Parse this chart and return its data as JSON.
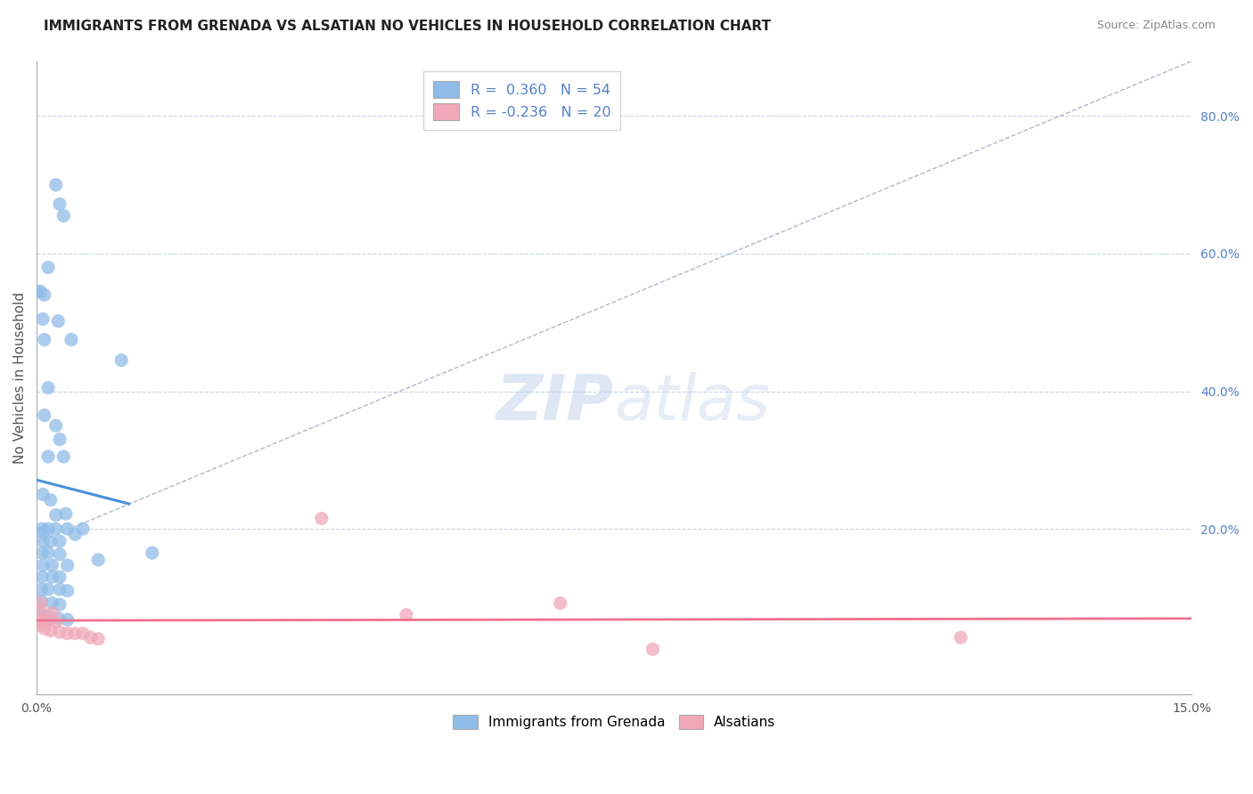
{
  "title": "IMMIGRANTS FROM GRENADA VS ALSATIAN NO VEHICLES IN HOUSEHOLD CORRELATION CHART",
  "source": "Source: ZipAtlas.com",
  "ylabel": "No Vehicles in Household",
  "ylabel_right_ticks": [
    "80.0%",
    "60.0%",
    "40.0%",
    "20.0%"
  ],
  "ylabel_right_tick_positions": [
    0.8,
    0.6,
    0.4,
    0.2
  ],
  "xmin": 0.0,
  "xmax": 0.15,
  "ymin": -0.04,
  "ymax": 0.88,
  "legend_labels": [
    "Immigrants from Grenada",
    "Alsatians"
  ],
  "blue_r": 0.36,
  "blue_n": 54,
  "pink_r": -0.236,
  "pink_n": 20,
  "blue_scatter": [
    [
      0.0005,
      0.545
    ],
    [
      0.0008,
      0.505
    ],
    [
      0.001,
      0.475
    ],
    [
      0.0025,
      0.7
    ],
    [
      0.003,
      0.672
    ],
    [
      0.0035,
      0.655
    ],
    [
      0.0015,
      0.58
    ],
    [
      0.0045,
      0.475
    ],
    [
      0.001,
      0.365
    ],
    [
      0.0025,
      0.35
    ],
    [
      0.003,
      0.33
    ],
    [
      0.0015,
      0.305
    ],
    [
      0.0035,
      0.305
    ],
    [
      0.0008,
      0.25
    ],
    [
      0.0018,
      0.242
    ],
    [
      0.0025,
      0.22
    ],
    [
      0.0038,
      0.222
    ],
    [
      0.0007,
      0.2
    ],
    [
      0.0015,
      0.2
    ],
    [
      0.0025,
      0.2
    ],
    [
      0.004,
      0.2
    ],
    [
      0.006,
      0.2
    ],
    [
      0.0008,
      0.182
    ],
    [
      0.0018,
      0.182
    ],
    [
      0.003,
      0.182
    ],
    [
      0.0007,
      0.165
    ],
    [
      0.0015,
      0.165
    ],
    [
      0.003,
      0.163
    ],
    [
      0.0008,
      0.147
    ],
    [
      0.002,
      0.147
    ],
    [
      0.004,
      0.147
    ],
    [
      0.0007,
      0.13
    ],
    [
      0.002,
      0.13
    ],
    [
      0.003,
      0.13
    ],
    [
      0.0006,
      0.112
    ],
    [
      0.0015,
      0.112
    ],
    [
      0.003,
      0.112
    ],
    [
      0.004,
      0.11
    ],
    [
      0.0006,
      0.095
    ],
    [
      0.002,
      0.092
    ],
    [
      0.003,
      0.09
    ],
    [
      0.0005,
      0.075
    ],
    [
      0.0015,
      0.072
    ],
    [
      0.0028,
      0.07
    ],
    [
      0.004,
      0.068
    ],
    [
      0.0008,
      0.195
    ],
    [
      0.005,
      0.192
    ],
    [
      0.0015,
      0.405
    ],
    [
      0.011,
      0.445
    ],
    [
      0.008,
      0.155
    ],
    [
      0.0028,
      0.502
    ],
    [
      0.015,
      0.165
    ],
    [
      0.0,
      0.545
    ],
    [
      0.001,
      0.54
    ]
  ],
  "pink_scatter": [
    [
      0.0005,
      0.06
    ],
    [
      0.001,
      0.055
    ],
    [
      0.0018,
      0.052
    ],
    [
      0.003,
      0.05
    ],
    [
      0.004,
      0.048
    ],
    [
      0.005,
      0.048
    ],
    [
      0.006,
      0.048
    ],
    [
      0.007,
      0.042
    ],
    [
      0.008,
      0.04
    ],
    [
      0.0006,
      0.068
    ],
    [
      0.0015,
      0.068
    ],
    [
      0.0025,
      0.065
    ],
    [
      0.0005,
      0.08
    ],
    [
      0.002,
      0.078
    ],
    [
      0.0005,
      0.092
    ],
    [
      0.037,
      0.215
    ],
    [
      0.048,
      0.075
    ],
    [
      0.068,
      0.092
    ],
    [
      0.08,
      0.025
    ],
    [
      0.12,
      0.042
    ]
  ],
  "title_fontsize": 11,
  "tick_fontsize": 10,
  "label_fontsize": 11,
  "dot_size": 120,
  "blue_line_color": "#4a90d9",
  "pink_line_color": "#f07090",
  "blue_dot_color": "#90bce8",
  "pink_dot_color": "#f0a8b8",
  "grid_color": "#c8d4e8",
  "background_color": "#ffffff",
  "right_tick_color": "#5580c8",
  "dashed_line_x": [
    0.0,
    0.15
  ],
  "dashed_line_y": [
    0.18,
    0.88
  ]
}
